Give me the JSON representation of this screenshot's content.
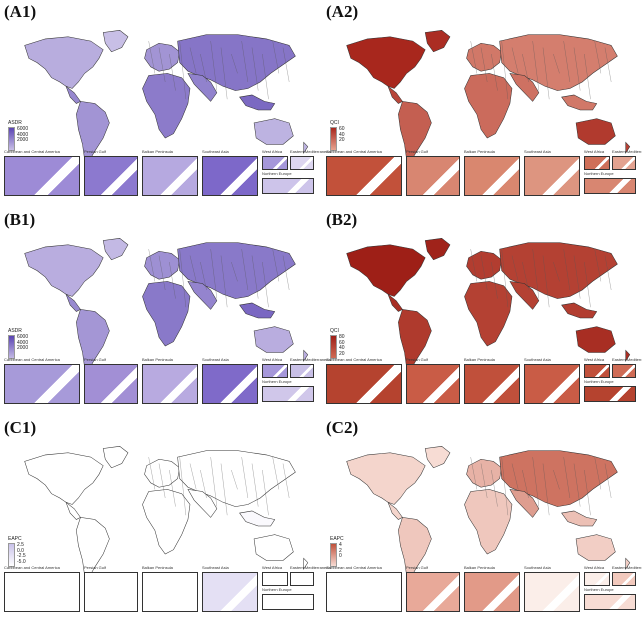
{
  "inset_labels": [
    "Caribbean and Central America",
    "Persian Gulf",
    "Balkan Peninsula",
    "Southeast Asia",
    "West Africa",
    "Eastern Mediterranean",
    "Northern Europe"
  ],
  "panels": [
    {
      "id": "A1",
      "title": "(A1)",
      "legend_title": "ASDR",
      "ticks": [
        "6000",
        "4000",
        "2000"
      ],
      "scheme": "purple",
      "base": "#c8bfe6",
      "dark": "#5a44b3",
      "ocean": "#ffffff",
      "insetfill": [
        "#9d8bd6",
        "#8c79cf",
        "#b6a9e0",
        "#7d68c9",
        "#a597da",
        "#ddd6f0",
        "#cdc4ea"
      ]
    },
    {
      "id": "A2",
      "title": "(A2)",
      "legend_title": "QCI",
      "ticks": [
        "60",
        "40",
        "20"
      ],
      "scheme": "red",
      "base": "#e7a390",
      "dark": "#a8271d",
      "insetfill": [
        "#c2513a",
        "#d88671",
        "#d9876f",
        "#dd9580",
        "#cf6f58",
        "#e3a290",
        "#d88671"
      ]
    },
    {
      "id": "B1",
      "title": "(B1)",
      "legend_title": "ASDR",
      "ticks": [
        "6000",
        "4000",
        "2000"
      ],
      "scheme": "purple",
      "base": "#c3b9e4",
      "dark": "#5a44b3",
      "insetfill": [
        "#a79ad9",
        "#a28fd5",
        "#b8aae0",
        "#7f6ac9",
        "#a597da",
        "#c8bfe6",
        "#d0c7ea"
      ]
    },
    {
      "id": "B2",
      "title": "(B2)",
      "legend_title": "QCI",
      "ticks": [
        "80",
        "60",
        "40",
        "20"
      ],
      "scheme": "red",
      "base": "#cf6b55",
      "dark": "#9e1f17",
      "insetfill": [
        "#b5432f",
        "#c95c46",
        "#c0503b",
        "#c95c46",
        "#c0503b",
        "#cf6b55",
        "#b5432f"
      ]
    },
    {
      "id": "C1",
      "title": "(C1)",
      "legend_title": "EAPC",
      "ticks": [
        "2.5",
        "0.0",
        "-2.5",
        "-5.0"
      ],
      "scheme": "white",
      "base": "#ffffff",
      "dark": "#c9c2ea",
      "insetfill": [
        "#ffffff",
        "#ffffff",
        "#ffffff",
        "#e4e0f4",
        "#ffffff",
        "#ffffff",
        "#ffffff"
      ]
    },
    {
      "id": "C2",
      "title": "(C2)",
      "legend_title": "EAPC",
      "ticks": [
        "4",
        "2",
        "0"
      ],
      "scheme": "pink",
      "base": "#f7dcd4",
      "dark": "#c0503b",
      "insetfill": [
        "#ffffff",
        "#e8a999",
        "#e29a88",
        "#fbeee9",
        "#fbeee9",
        "#f2c9bd",
        "#f7dcd4"
      ]
    }
  ],
  "colors": {
    "border": "#333333",
    "ocean": "#ffffff"
  }
}
